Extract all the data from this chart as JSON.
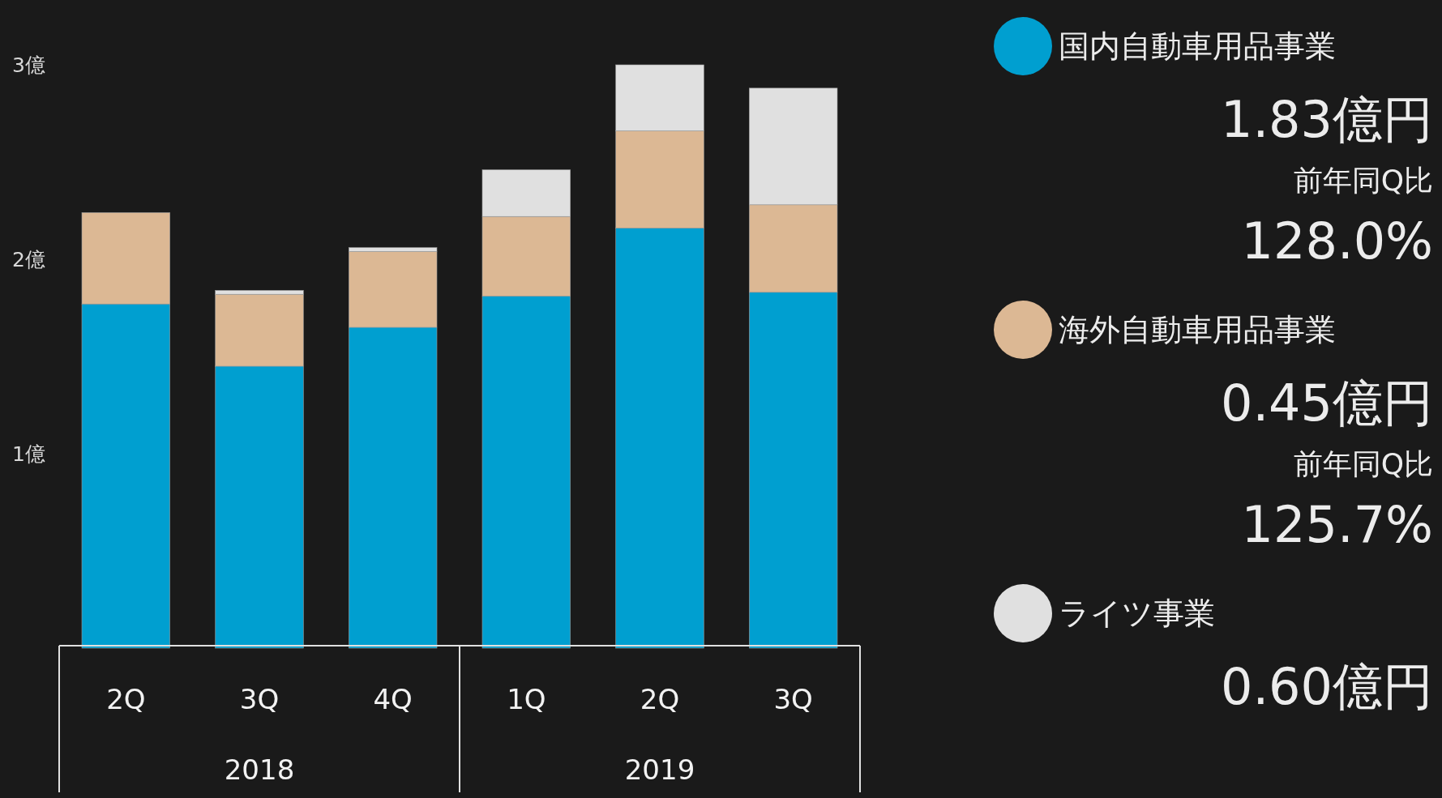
{
  "chart_data": {
    "type": "bar",
    "stacked": true,
    "categories": [
      "2Q",
      "3Q",
      "4Q",
      "1Q",
      "2Q",
      "3Q"
    ],
    "series": [
      {
        "name": "国内自動車用品事業",
        "color": "#009fd0",
        "values": [
          1.77,
          1.45,
          1.65,
          1.81,
          2.16,
          1.83
        ]
      },
      {
        "name": "海外自動車用品事業",
        "color": "#dcb894",
        "values": [
          0.47,
          0.37,
          0.39,
          0.41,
          0.5,
          0.45
        ]
      },
      {
        "name": "ライツ事業",
        "color": "#e0e0e0",
        "values": [
          null,
          0.02,
          0.02,
          0.24,
          0.34,
          0.6
        ]
      }
    ],
    "ylim": [
      0,
      3
    ],
    "yticks": [
      {
        "value": 1,
        "label": "1億"
      },
      {
        "value": 2,
        "label": "2億"
      },
      {
        "value": 3,
        "label": "3億"
      }
    ],
    "legend": "right",
    "annotations": [
      "2018",
      "2019",
      "1.83億円",
      "前年同Q比",
      "128.0%",
      "0.45億円",
      "前年同Q比",
      "125.7%",
      "0.60億円"
    ]
  }
}
